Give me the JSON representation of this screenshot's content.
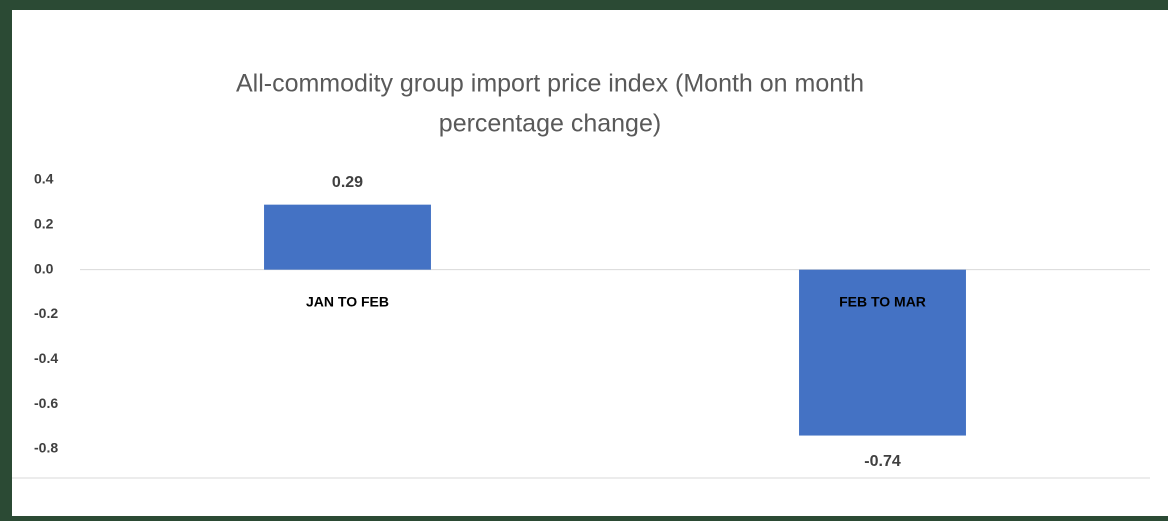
{
  "chart_data": {
    "type": "bar",
    "title_lines": [
      "All-commodity group import price index (Month on month",
      "percentage change)"
    ],
    "categories": [
      "JAN TO FEB",
      "FEB TO MAR"
    ],
    "values": [
      0.29,
      -0.74
    ],
    "color": "#4472c4",
    "ylim": [
      -0.8,
      0.4
    ],
    "yticks": [
      -0.8,
      -0.6,
      -0.4,
      -0.2,
      {
        "value": 0,
        "label": "0.0"
      },
      0.2,
      0.4
    ],
    "grid": false
  }
}
